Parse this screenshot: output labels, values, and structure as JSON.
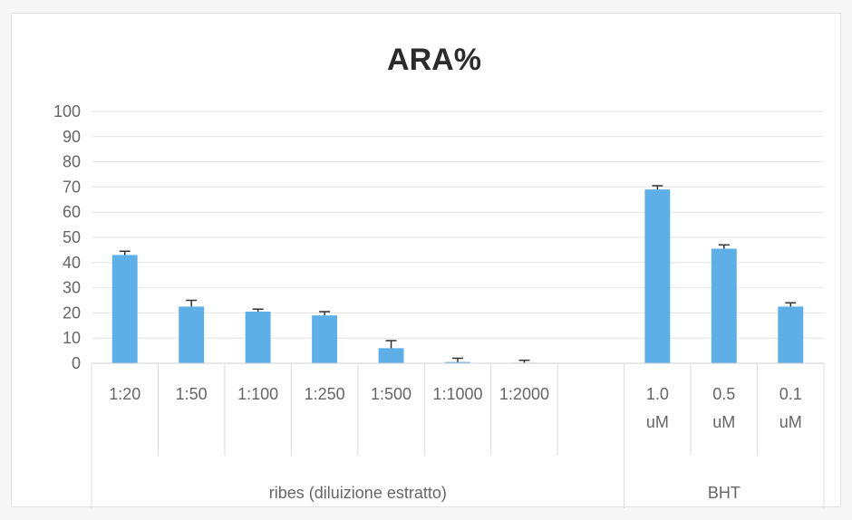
{
  "chart_data": {
    "type": "bar",
    "title": "ARA%",
    "ylim": [
      0,
      100
    ],
    "yticks": [
      0,
      10,
      20,
      30,
      40,
      50,
      60,
      70,
      80,
      90,
      100
    ],
    "grid": true,
    "legend": "none",
    "bar_color": "#5eaee8",
    "categories": [
      {
        "lines": [
          "1:20"
        ],
        "group": "ribes (diluizione estratto)"
      },
      {
        "lines": [
          "1:50"
        ],
        "group": "ribes (diluizione estratto)"
      },
      {
        "lines": [
          "1:100"
        ],
        "group": "ribes (diluizione estratto)"
      },
      {
        "lines": [
          "1:250"
        ],
        "group": "ribes (diluizione estratto)"
      },
      {
        "lines": [
          "1:500"
        ],
        "group": "ribes (diluizione estratto)"
      },
      {
        "lines": [
          "1:1000"
        ],
        "group": "ribes (diluizione estratto)"
      },
      {
        "lines": [
          "1:2000"
        ],
        "group": "ribes (diluizione estratto)"
      },
      {
        "lines": [
          ""
        ],
        "group": "ribes (diluizione estratto)"
      },
      {
        "lines": [
          "1.0",
          "uM"
        ],
        "group": "BHT"
      },
      {
        "lines": [
          "0.5",
          "uM"
        ],
        "group": "BHT"
      },
      {
        "lines": [
          "0.1",
          "uM"
        ],
        "group": "BHT"
      }
    ],
    "values": [
      43,
      22.5,
      20.5,
      19,
      6,
      0.5,
      0.2,
      null,
      69,
      45.5,
      22.5
    ],
    "errors": [
      1.5,
      2.5,
      1,
      1.5,
      3,
      1.5,
      1,
      null,
      1.5,
      1.5,
      1.5
    ],
    "groups": [
      {
        "label": "ribes (diluizione estratto)",
        "start": 0,
        "end": 7
      },
      {
        "label": "BHT",
        "start": 8,
        "end": 10
      }
    ]
  }
}
